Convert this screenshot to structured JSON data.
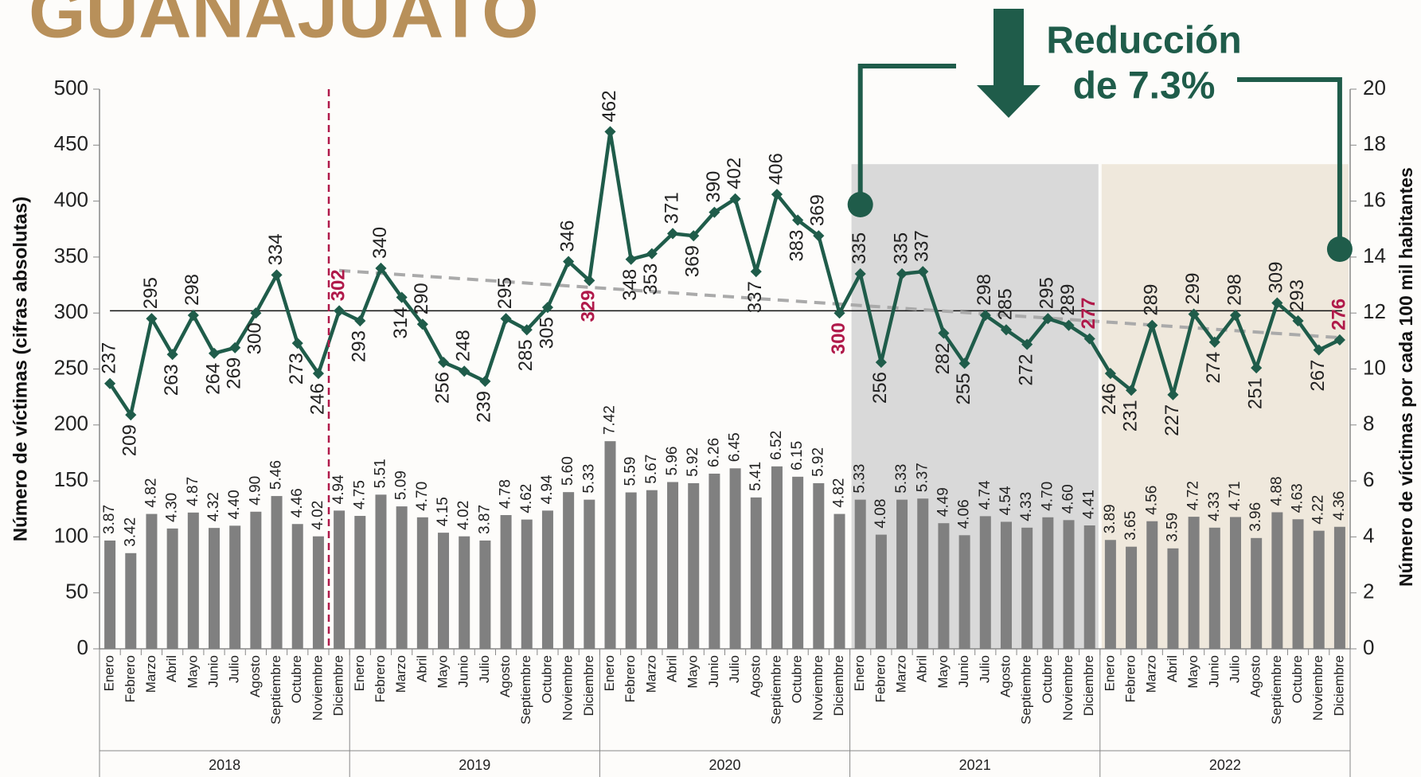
{
  "chart_data": {
    "type": "combo",
    "title": "GUANAJUATO",
    "annotation": [
      "Reducción",
      "de 7.3%"
    ],
    "y_label": "Número de víctimas (cifras absolutas)",
    "y2_label": "Número de víctimas por cada 100 mil habitantes",
    "categories": [
      "Enero",
      "Febrero",
      "Marzo",
      "Abril",
      "Mayo",
      "Junio",
      "Julio",
      "Agosto",
      "Septiembre",
      "Octubre",
      "Noviembre",
      "Diciembre",
      "Enero",
      "Febrero",
      "Marzo",
      "Abril",
      "Mayo",
      "Junio",
      "Julio",
      "Agosto",
      "Septiembre",
      "Octubre",
      "Noviembre",
      "Diciembre",
      "Enero",
      "Febrero",
      "Marzo",
      "Abril",
      "Mayo",
      "Junio",
      "Julio",
      "Agosto",
      "Septiembre",
      "Octubre",
      "Noviembre",
      "Diciembre",
      "Enero",
      "Febrero",
      "Marzo",
      "Abril",
      "Mayo",
      "Junio",
      "Julio",
      "Agosto",
      "Septiembre",
      "Octubre",
      "Noviembre",
      "Diciembre",
      "Enero",
      "Febrero",
      "Marzo",
      "Abril",
      "Mayo",
      "Junio",
      "Julio",
      "Agosto",
      "Septiembre",
      "Octubre",
      "Noviembre",
      "Diciembre"
    ],
    "year_labels": [
      "2018",
      "2019",
      "2020",
      "2021",
      "2022"
    ],
    "group_shading": [
      null,
      null,
      null,
      "#d9d9d9",
      "#efe8dc"
    ],
    "series": [
      {
        "type": "line",
        "color": "#1f5c4a",
        "values": [
          237,
          209,
          295,
          263,
          298,
          264,
          269,
          300,
          334,
          273,
          246,
          302,
          293,
          340,
          314,
          290,
          256,
          248,
          239,
          295,
          285,
          305,
          346,
          329,
          462,
          348,
          353,
          371,
          369,
          390,
          402,
          337,
          406,
          383,
          369,
          300,
          335,
          256,
          335,
          337,
          282,
          255,
          298,
          285,
          272,
          295,
          289,
          277,
          246,
          231,
          289,
          227,
          299,
          274,
          298,
          251,
          309,
          293,
          267,
          276
        ]
      },
      {
        "type": "bar",
        "axis": "y2",
        "color": "#808080",
        "values": [
          3.87,
          3.42,
          4.82,
          4.3,
          4.87,
          4.32,
          4.4,
          4.9,
          5.46,
          4.46,
          4.02,
          4.94,
          4.75,
          5.51,
          5.09,
          4.7,
          4.15,
          4.02,
          3.87,
          4.78,
          4.62,
          4.94,
          5.6,
          5.33,
          7.42,
          5.59,
          5.67,
          5.96,
          5.92,
          6.26,
          6.45,
          5.41,
          6.52,
          6.15,
          5.92,
          4.82,
          5.33,
          4.08,
          5.33,
          5.37,
          4.49,
          4.06,
          4.74,
          4.54,
          4.33,
          4.7,
          4.6,
          4.41,
          3.89,
          3.65,
          4.56,
          3.59,
          4.72,
          4.33,
          4.71,
          3.96,
          4.88,
          4.63,
          4.22,
          4.36
        ],
        "value_labels": [
          "3.87",
          "3.42",
          "4.82",
          "4.30",
          "4.87",
          "4.32",
          "4.40",
          "4.90",
          "5.46",
          "4.46",
          "4.02",
          "4.94",
          "4.75",
          "5.51",
          "5.09",
          "4.70",
          "4.15",
          "4.02",
          "3.87",
          "4.78",
          "4.62",
          "4.94",
          "5.60",
          "5.33",
          "7.42",
          "5.59",
          "5.67",
          "5.96",
          "5.92",
          "6.26",
          "6.45",
          "5.41",
          "6.52",
          "6.15",
          "5.92",
          "4.82",
          "5.33",
          "4.08",
          "5.33",
          "5.37",
          "4.49",
          "4.06",
          "4.74",
          "4.54",
          "4.33",
          "4.70",
          "4.60",
          "4.41",
          "3.89",
          "3.65",
          "4.56",
          "3.59",
          "4.72",
          "4.33",
          "4.71",
          "3.96",
          "4.88",
          "4.63",
          "4.22",
          "4.36"
        ]
      }
    ],
    "highlight_color": "#b0194a",
    "reference_line": 302,
    "trend_line": [
      338,
      278
    ],
    "ylim": [
      0,
      500
    ],
    "yticks": [
      0,
      50,
      100,
      150,
      200,
      250,
      300,
      350,
      400,
      450,
      500
    ],
    "y2lim": [
      0,
      20
    ],
    "y2ticks": [
      0,
      2,
      4,
      6,
      8,
      10,
      12,
      14,
      16,
      18,
      20
    ]
  }
}
